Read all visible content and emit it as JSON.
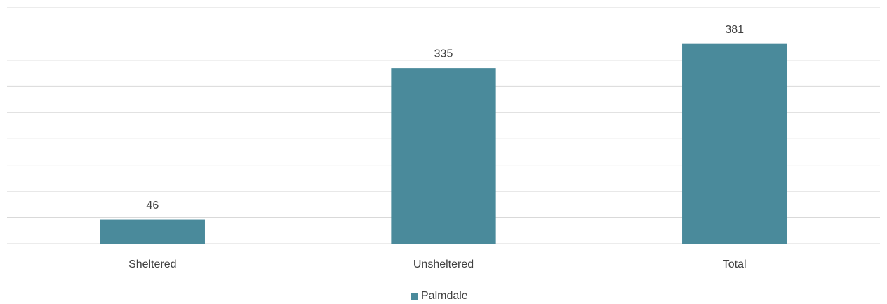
{
  "chart_data": {
    "type": "bar",
    "categories": [
      "Sheltered",
      "Unsheltered",
      "Total"
    ],
    "series": [
      {
        "name": "Palmdale",
        "color": "#4a8a9b",
        "values": [
          46,
          335,
          381
        ]
      }
    ],
    "ylim": [
      0,
      450
    ],
    "yticks": [
      0,
      50,
      100,
      150,
      200,
      250,
      300,
      350,
      400,
      450
    ],
    "grid": true,
    "legend": "bottom"
  }
}
